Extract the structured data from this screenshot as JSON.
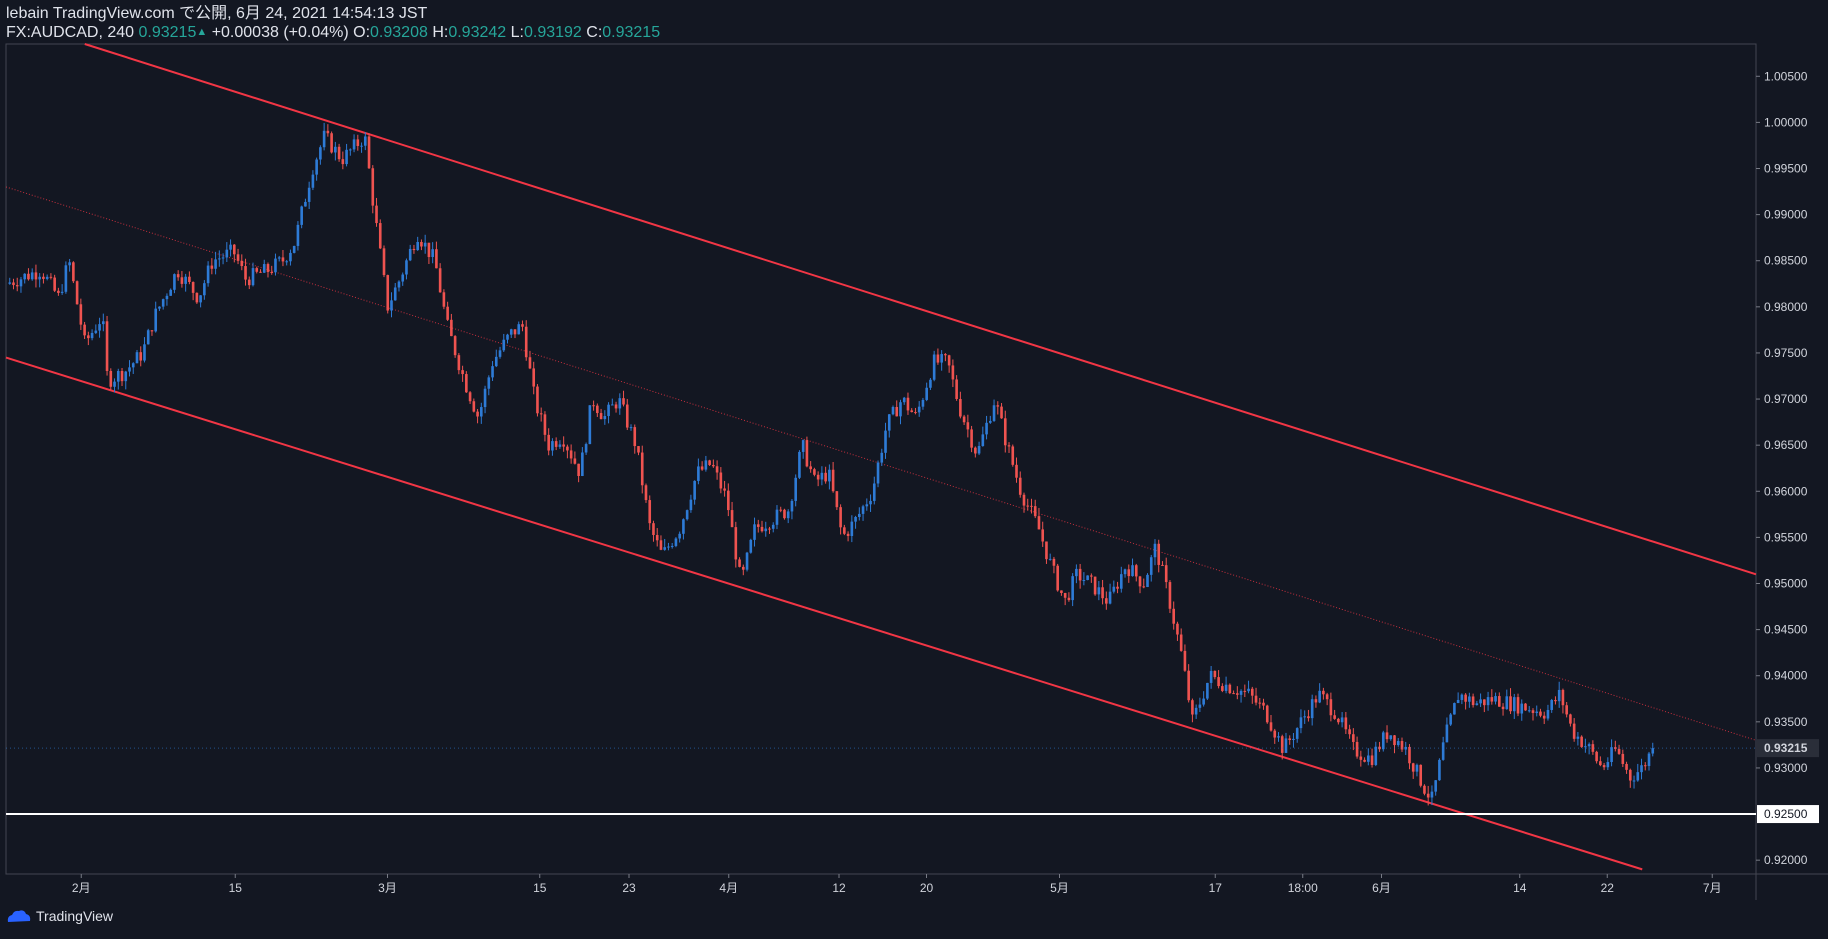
{
  "header": {
    "line1": "lebain TradingView.com で公開, 6月 24, 2021 14:54:13 JST",
    "symbol": "FX:AUDCAD, 240",
    "last": "0.93215",
    "arrow": "▲",
    "change": "+0.00038 (+0.04%)",
    "o_label": "O:",
    "o_value": "0.93208",
    "h_label": "H:",
    "h_value": "0.93242",
    "l_label": "L:",
    "l_value": "0.93192",
    "c_label": "C:",
    "c_value": "0.93215"
  },
  "footer": {
    "brand": "TradingView"
  },
  "colors": {
    "background": "#131722",
    "up": "#2e7bd6",
    "down": "#ef5350",
    "channel": "#f23645",
    "support": "#ffffff",
    "axis_text": "#d1d4dc"
  },
  "chart_data": {
    "type": "candlestick",
    "symbol": "FX:AUDCAD",
    "interval": "240",
    "ylim": [
      0.9185,
      1.0085
    ],
    "y_ticks": [
      "1.00500",
      "1.00000",
      "0.99500",
      "0.99000",
      "0.98500",
      "0.98000",
      "0.97500",
      "0.97000",
      "0.96500",
      "0.96000",
      "0.95500",
      "0.95000",
      "0.94500",
      "0.94000",
      "0.93500",
      "0.93000",
      "0.92000"
    ],
    "x_ticks": [
      "2月",
      "15",
      "3月",
      "15",
      "23",
      "4月",
      "12",
      "20",
      "5月",
      "17",
      "18:00",
      "6月",
      "14",
      "22",
      "7月"
    ],
    "x_tick_positions": [
      0.043,
      0.131,
      0.218,
      0.305,
      0.356,
      0.413,
      0.476,
      0.526,
      0.602,
      0.691,
      0.741,
      0.786,
      0.865,
      0.915,
      0.975
    ],
    "current_price": {
      "label": "0.93215",
      "value": 0.93215
    },
    "support_level": {
      "label": "0.92500",
      "value": 0.925
    },
    "path_points": [
      [
        0.0,
        0.9825
      ],
      [
        0.02,
        0.984
      ],
      [
        0.03,
        0.981
      ],
      [
        0.036,
        0.985
      ],
      [
        0.045,
        0.976
      ],
      [
        0.055,
        0.979
      ],
      [
        0.058,
        0.972
      ],
      [
        0.068,
        0.973
      ],
      [
        0.078,
        0.975
      ],
      [
        0.085,
        0.979
      ],
      [
        0.098,
        0.984
      ],
      [
        0.11,
        0.981
      ],
      [
        0.118,
        0.985
      ],
      [
        0.13,
        0.986
      ],
      [
        0.137,
        0.983
      ],
      [
        0.15,
        0.984
      ],
      [
        0.158,
        0.985
      ],
      [
        0.165,
        0.987
      ],
      [
        0.175,
        0.995
      ],
      [
        0.182,
        0.9985
      ],
      [
        0.192,
        0.996
      ],
      [
        0.205,
        0.9985
      ],
      [
        0.21,
        0.991
      ],
      [
        0.218,
        0.98
      ],
      [
        0.225,
        0.983
      ],
      [
        0.235,
        0.988
      ],
      [
        0.245,
        0.985
      ],
      [
        0.252,
        0.978
      ],
      [
        0.262,
        0.972
      ],
      [
        0.27,
        0.968
      ],
      [
        0.278,
        0.974
      ],
      [
        0.288,
        0.977
      ],
      [
        0.295,
        0.978
      ],
      [
        0.302,
        0.97
      ],
      [
        0.31,
        0.965
      ],
      [
        0.318,
        0.966
      ],
      [
        0.328,
        0.962
      ],
      [
        0.335,
        0.97
      ],
      [
        0.342,
        0.968
      ],
      [
        0.35,
        0.97
      ],
      [
        0.36,
        0.965
      ],
      [
        0.368,
        0.956
      ],
      [
        0.375,
        0.953
      ],
      [
        0.385,
        0.956
      ],
      [
        0.395,
        0.962
      ],
      [
        0.403,
        0.963
      ],
      [
        0.412,
        0.959
      ],
      [
        0.42,
        0.95
      ],
      [
        0.428,
        0.956
      ],
      [
        0.438,
        0.957
      ],
      [
        0.447,
        0.958
      ],
      [
        0.455,
        0.965
      ],
      [
        0.462,
        0.961
      ],
      [
        0.47,
        0.962
      ],
      [
        0.478,
        0.955
      ],
      [
        0.486,
        0.957
      ],
      [
        0.495,
        0.96
      ],
      [
        0.503,
        0.967
      ],
      [
        0.512,
        0.97
      ],
      [
        0.52,
        0.968
      ],
      [
        0.53,
        0.974
      ],
      [
        0.538,
        0.974
      ],
      [
        0.545,
        0.969
      ],
      [
        0.555,
        0.964
      ],
      [
        0.565,
        0.97
      ],
      [
        0.572,
        0.965
      ],
      [
        0.58,
        0.96
      ],
      [
        0.59,
        0.956
      ],
      [
        0.597,
        0.952
      ],
      [
        0.605,
        0.948
      ],
      [
        0.612,
        0.951
      ],
      [
        0.62,
        0.95
      ],
      [
        0.63,
        0.948
      ],
      [
        0.64,
        0.952
      ],
      [
        0.65,
        0.95
      ],
      [
        0.657,
        0.954
      ],
      [
        0.665,
        0.948
      ],
      [
        0.672,
        0.942
      ],
      [
        0.678,
        0.935
      ],
      [
        0.688,
        0.94
      ],
      [
        0.697,
        0.939
      ],
      [
        0.71,
        0.938
      ],
      [
        0.72,
        0.936
      ],
      [
        0.73,
        0.932
      ],
      [
        0.74,
        0.935
      ],
      [
        0.75,
        0.938
      ],
      [
        0.76,
        0.936
      ],
      [
        0.77,
        0.932
      ],
      [
        0.78,
        0.931
      ],
      [
        0.79,
        0.934
      ],
      [
        0.8,
        0.932
      ],
      [
        0.81,
        0.928
      ],
      [
        0.815,
        0.9265
      ],
      [
        0.822,
        0.933
      ],
      [
        0.83,
        0.938
      ],
      [
        0.84,
        0.937
      ],
      [
        0.85,
        0.9375
      ],
      [
        0.86,
        0.937
      ],
      [
        0.87,
        0.9365
      ],
      [
        0.88,
        0.936
      ],
      [
        0.888,
        0.938
      ],
      [
        0.895,
        0.934
      ],
      [
        0.905,
        0.932
      ],
      [
        0.912,
        0.93
      ],
      [
        0.92,
        0.932
      ],
      [
        0.928,
        0.929
      ],
      [
        0.935,
        0.93
      ],
      [
        0.941,
        0.93215
      ]
    ],
    "channel": {
      "upper": [
        [
          0.045,
          1.0085
        ],
        [
          1.0,
          0.951
        ]
      ],
      "lower": [
        [
          0.0,
          0.9745
        ],
        [
          0.935,
          0.919
        ]
      ],
      "mid": [
        [
          0.0,
          0.993
        ],
        [
          1.0,
          0.933
        ]
      ]
    },
    "grid": false
  }
}
